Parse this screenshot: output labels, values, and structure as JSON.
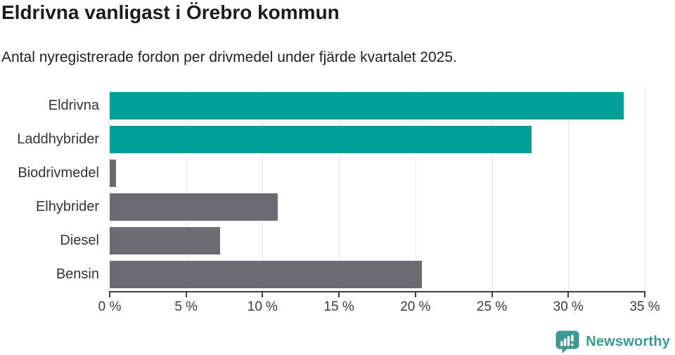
{
  "chart_data": {
    "type": "bar",
    "orientation": "horizontal",
    "title": "Eldrivna vanligast i Örebro kommun",
    "subtitle": "Antal nyregistrerade fordon per drivmedel under fjärde kvartalet 2025.",
    "categories": [
      "Eldrivna",
      "Laddhybrider",
      "Biodrivmedel",
      "Elhybrider",
      "Diesel",
      "Bensin"
    ],
    "values": [
      33.6,
      27.6,
      0.4,
      11.0,
      7.2,
      20.4
    ],
    "unit": "%",
    "xlim": [
      0,
      35
    ],
    "x_ticks": [
      0,
      5,
      10,
      15,
      20,
      25,
      30,
      35
    ],
    "x_tick_labels": [
      "0 %",
      "5 %",
      "10 %",
      "15 %",
      "20 %",
      "25 %",
      "30 %",
      "35 %"
    ],
    "bar_colors": [
      "#00a099",
      "#00a099",
      "#6c6b71",
      "#6c6b71",
      "#6c6b71",
      "#6c6b71"
    ],
    "grid": "vertical-gridlines-on",
    "legend": "none",
    "ylabel": "",
    "xlabel": ""
  },
  "colors": {
    "accent_teal": "#00a099",
    "bar_gray": "#6c6b71",
    "axis": "#3d3d41",
    "gridline": "#e4e4e4",
    "logo_teal": "#3b9992"
  },
  "branding": {
    "logo_text": "Newsworthy",
    "logo_icon": "newsworthy-bubble-barchart-icon"
  }
}
